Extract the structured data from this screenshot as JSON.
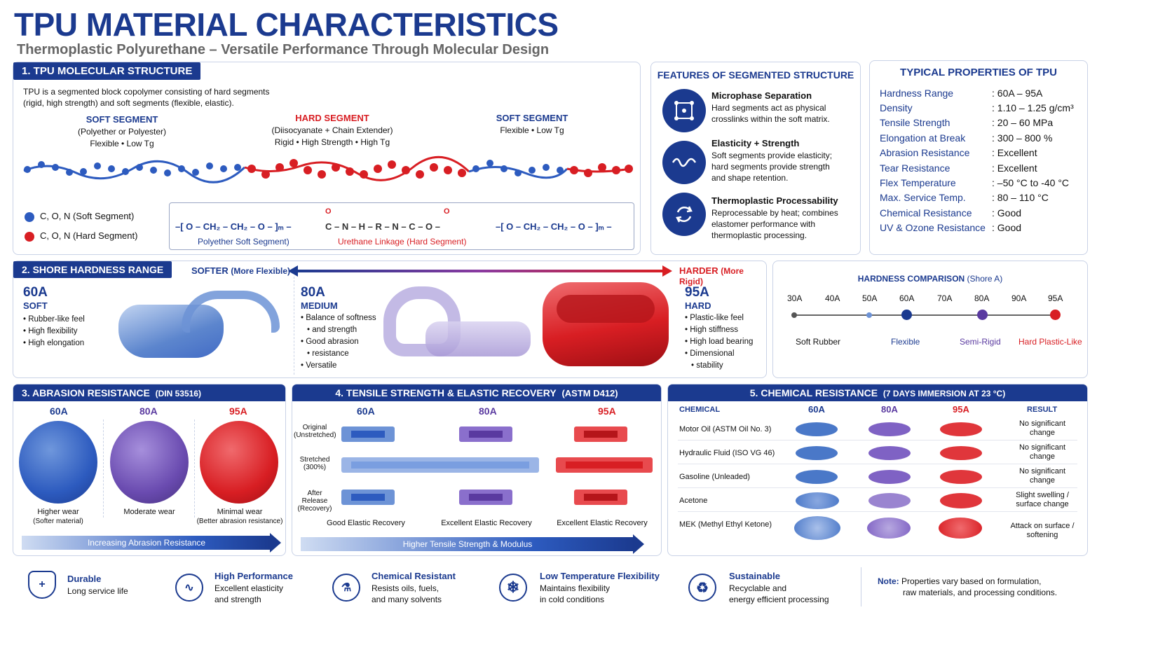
{
  "header": {
    "title": "TPU MATERIAL CHARACTERISTICS",
    "subtitle": "Thermoplastic Polyurethane – Versatile Performance Through Molecular Design"
  },
  "s1": {
    "tab": "1. TPU MOLECULAR STRUCTURE",
    "intro1": "TPU is a segmented block copolymer consisting of hard segments",
    "intro2": "(rigid, high strength) and soft segments (flexible, elastic).",
    "soft1_title": "SOFT SEGMENT",
    "soft1_l1": "(Polyether or Polyester)",
    "soft1_l2": "Flexible • Low Tg",
    "hard_title": "HARD SEGMENT",
    "hard_l1": "(Diisocyanate + Chain Extender)",
    "hard_l2": "Rigid • High Strength • High Tg",
    "soft2_title": "SOFT SEGMENT",
    "soft2_l1": "Flexible • Low Tg",
    "legend_soft": "C, O, N (Soft Segment)",
    "legend_hard": "C, O, N (Hard Segment)",
    "formula_left": "–[ O – CH₂ – CH₂ – O – ]ₘ –",
    "formula_mid": "C – N – H – R – N – C – O –",
    "formula_right": "–[ O – CH₂ – CH₂ – O – ]ₘ –",
    "o_label": "O",
    "formula_soft_label": "Polyether Soft Segment)",
    "formula_hard_label": "Urethane Linkage (Hard Segment)"
  },
  "features": {
    "title": "FEATURES OF SEGMENTED STRUCTURE",
    "items": [
      {
        "title": "Microphase Separation",
        "l1": "Hard segments act as physical",
        "l2": "crosslinks within the soft matrix.",
        "l3": ""
      },
      {
        "title": "Elasticity + Strength",
        "l1": "Soft segments provide elasticity;",
        "l2": "hard segments provide strength",
        "l3": "and shape retention."
      },
      {
        "title": "Thermoplastic Processability",
        "l1": "Reprocessable by heat; combines",
        "l2": "elastomer performance with",
        "l3": "thermoplastic processing."
      }
    ]
  },
  "props": {
    "title": "TYPICAL PROPERTIES OF TPU",
    "rows": [
      {
        "k": "Hardness Range",
        "v": ":  60A – 95A"
      },
      {
        "k": "Density",
        "v": ":  1.10 – 1.25 g/cm³"
      },
      {
        "k": "Tensile Strength",
        "v": ":  20 – 60 MPa"
      },
      {
        "k": "Elongation at Break",
        "v": ":  300 – 800 %"
      },
      {
        "k": "Abrasion Resistance",
        "v": ":  Excellent"
      },
      {
        "k": "Tear Resistance",
        "v": ":  Excellent"
      },
      {
        "k": "Flex Temperature",
        "v": ":  –50 °C to -40 °C"
      },
      {
        "k": "Max. Service Temp.",
        "v": ":  80 – 110 °C"
      },
      {
        "k": "Chemical Resistance",
        "v": ":  Good"
      },
      {
        "k": "UV & Ozone Resistance",
        "v": ":  Good"
      }
    ]
  },
  "s2": {
    "tab": "2. SHORE HARDNESS RANGE",
    "softer": "SOFTER",
    "softer_note": "(More Flexible)",
    "harder": "HARDER",
    "harder_note": "(More Rigid)",
    "a60": "60A",
    "a60_sub": "SOFT",
    "a60_items": [
      "Rubber-like feel",
      "High flexibility",
      "High elongation"
    ],
    "a80": "80A",
    "a80_sub": "MEDIUM",
    "a80_items": [
      "Balance of softness",
      "and strength",
      "Good abrasion",
      "resistance",
      "Versatile"
    ],
    "a95": "95A",
    "a95_sub": "HARD",
    "a95_items": [
      "Plastic-like feel",
      "High stiffness",
      "High load bearing",
      "Dimensional",
      "stability"
    ],
    "cmp_title": "HARDNESS COMPARISON",
    "cmp_unit": "(Shore A)",
    "ticks": [
      "30A",
      "40A",
      "50A",
      "60A",
      "70A",
      "80A",
      "90A",
      "95A"
    ],
    "cmp_labels": [
      "Soft Rubber",
      "Flexible",
      "Semi-Rigid",
      "Hard Plastic-Like"
    ]
  },
  "s3": {
    "title": "3. ABRASION RESISTANCE",
    "std": "(DIN 53516)",
    "grades": [
      "60A",
      "80A",
      "95A"
    ],
    "c1a": "Higher wear",
    "c1b": "(Softer material)",
    "c2a": "Moderate wear",
    "c3a": "Minimal wear",
    "c3b": "(Better abrasion resistance)",
    "arrow": "Increasing Abrasion Resistance"
  },
  "s4": {
    "title": "4. TENSILE STRENGTH & ELASTIC RECOVERY",
    "std": "(ASTM D412)",
    "grades": [
      "60A",
      "80A",
      "95A"
    ],
    "r1a": "Original",
    "r1b": "(Unstretched)",
    "r2a": "Stretched",
    "r2b": "(300%)",
    "r3a": "After Release",
    "r3b": "(Recovery)",
    "rec": [
      "Good Elastic Recovery",
      "Excellent Elastic Recovery",
      "Excellent Elastic Recovery"
    ],
    "arrow": "Higher Tensile Strength & Modulus"
  },
  "s5": {
    "title": "5. CHEMICAL RESISTANCE",
    "std": "(7 DAYS IMMERSION AT 23 °C)",
    "h_chem": "CHEMICAL",
    "h_60": "60A",
    "h_80": "80A",
    "h_95": "95A",
    "h_res": "RESULT",
    "rows": [
      {
        "c": "Motor Oil (ASTM Oil No. 3)",
        "r1": "No significant",
        "r2": "change"
      },
      {
        "c": "Hydraulic Fluid (ISO VG 46)",
        "r1": "No significant",
        "r2": "change"
      },
      {
        "c": "Gasoline (Unleaded)",
        "r1": "No significant",
        "r2": "change"
      },
      {
        "c": "Acetone",
        "r1": "Slight swelling /",
        "r2": "surface change"
      },
      {
        "c": "MEK (Methyl Ethyl Ketone)",
        "r1": "Attack on surface /",
        "r2": "softening"
      }
    ]
  },
  "footer": {
    "items": [
      {
        "t": "Durable",
        "l1": "Long service life",
        "l2": ""
      },
      {
        "t": "High Performance",
        "l1": "Excellent elasticity",
        "l2": "and strength"
      },
      {
        "t": "Chemical Resistant",
        "l1": "Resists oils, fuels,",
        "l2": "and many solvents"
      },
      {
        "t": "Low Temperature Flexibility",
        "l1": "Maintains flexibility",
        "l2": "in cold conditions"
      },
      {
        "t": "Sustainable",
        "l1": "Recyclable and",
        "l2": "energy efficient processing"
      }
    ],
    "note_label": "Note:",
    "note1": "Properties vary based on formulation,",
    "note2": "raw materials, and processing conditions."
  },
  "colors": {
    "navy": "#1b3a8f",
    "red": "#d81e23",
    "blue": "#2d5bbf",
    "purple": "#6a4bb0"
  }
}
